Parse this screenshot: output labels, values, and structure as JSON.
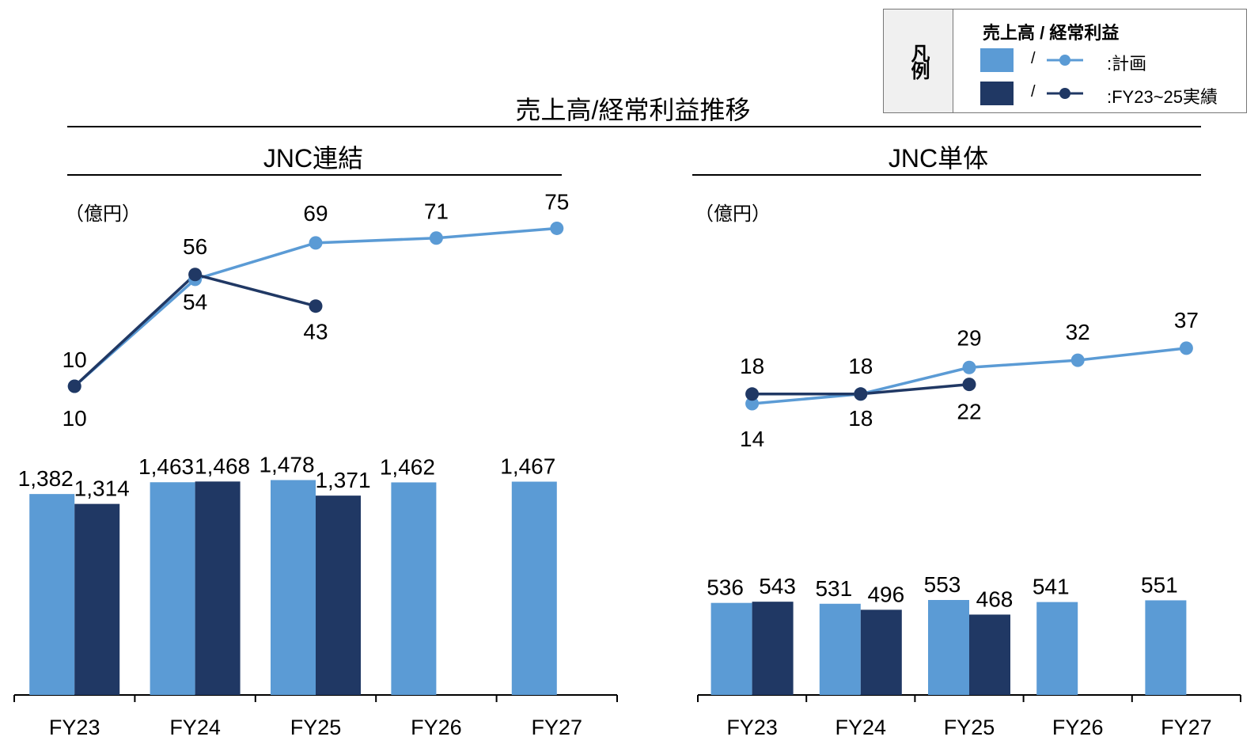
{
  "main_title": "売上高/経常利益推移",
  "legend": {
    "header": "凡例",
    "title": "売上高 / 経常利益",
    "separator": "/",
    "plan_label": ":計画",
    "actual_label": ":FY23~25実績"
  },
  "colors": {
    "plan": "#5b9bd5",
    "actual": "#203864"
  },
  "chart_data": [
    {
      "type": "bar",
      "title": "JNC連結",
      "unit_label": "（億円）",
      "categories": [
        "FY23",
        "FY24",
        "FY25",
        "FY26",
        "FY27"
      ],
      "series": [
        {
          "name": "売上高 計画",
          "values": [
            1382,
            1463,
            1478,
            1462,
            1467
          ],
          "labels": [
            "1,382",
            "1,463",
            "1,478",
            "1,462",
            "1,467"
          ]
        },
        {
          "name": "売上高 FY23~25実績",
          "values": [
            1314,
            1468,
            1371,
            null,
            null
          ],
          "labels": [
            "1,314",
            "1,468",
            "1,371",
            "",
            ""
          ]
        }
      ],
      "line_series": [
        {
          "name": "経常利益 計画",
          "values": [
            10,
            54,
            69,
            71,
            75
          ]
        },
        {
          "name": "経常利益 FY23~25実績",
          "values": [
            10,
            56,
            43,
            null,
            null
          ]
        }
      ]
    },
    {
      "type": "bar",
      "title": "JNC単体",
      "unit_label": "（億円）",
      "categories": [
        "FY23",
        "FY24",
        "FY25",
        "FY26",
        "FY27"
      ],
      "series": [
        {
          "name": "売上高 計画",
          "values": [
            536,
            531,
            553,
            541,
            551
          ],
          "labels": [
            "536",
            "531",
            "553",
            "541",
            "551"
          ]
        },
        {
          "name": "売上高 FY23~25実績",
          "values": [
            543,
            496,
            468,
            null,
            null
          ],
          "labels": [
            "543",
            "496",
            "468",
            "",
            ""
          ]
        }
      ],
      "line_series": [
        {
          "name": "経常利益 計画",
          "values": [
            14,
            18,
            29,
            32,
            37
          ]
        },
        {
          "name": "経常利益 FY23~25実績",
          "values": [
            18,
            18,
            22,
            null,
            null
          ]
        }
      ]
    }
  ]
}
